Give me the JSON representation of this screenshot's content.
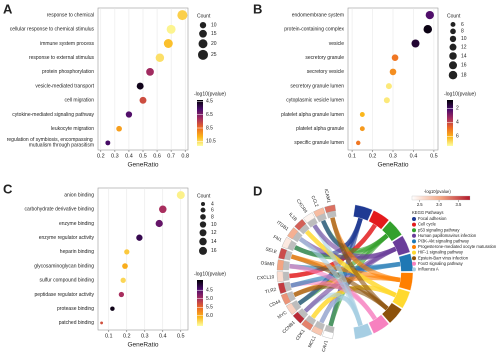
{
  "chart_data": [
    {
      "type": "dot",
      "panel": "A",
      "x_label": "GeneRatio",
      "categories": [
        "response to chemical",
        "cellular response to chemical stimulus",
        "immune system process",
        "response to external stimulus",
        "protein phosphorylation",
        "vesicle-mediated transport",
        "cell migration",
        "cytokine-mediated signaling pathway",
        "leukocyte migration",
        "regulation of symbiosis, encompassing mutualism through parasitism"
      ],
      "x": [
        0.78,
        0.7,
        0.68,
        0.62,
        0.55,
        0.48,
        0.5,
        0.4,
        0.33,
        0.25
      ],
      "count": [
        25,
        20,
        20,
        18,
        15,
        12,
        12,
        10,
        8,
        6
      ],
      "neglog10p": [
        10.3,
        11.0,
        10.0,
        10.6,
        7.0,
        4.6,
        7.8,
        5.8,
        9.4,
        5.6
      ],
      "xlim": [
        0.18,
        0.82
      ],
      "xticks": [
        0.2,
        0.3,
        0.4,
        0.5,
        0.6,
        0.7,
        0.8
      ],
      "grid": true,
      "size_legend_title": "Count",
      "size_legend": [
        10,
        15,
        20,
        25
      ],
      "color_legend_title": "-log10(pvalue)",
      "clim": [
        4.3,
        11.2
      ],
      "cticks": [
        4.5,
        6.5,
        8.5,
        10.5
      ],
      "colormap": [
        "#000004",
        "#4a0c6b",
        "#a52c60",
        "#ed6925",
        "#fbb61a",
        "#fcffa4"
      ]
    },
    {
      "type": "dot",
      "panel": "B",
      "x_label": "GeneRatio",
      "categories": [
        "endomembrane system",
        "protein-containing complex",
        "vesicle",
        "secretory granule",
        "secretory vesicle",
        "secretory granule lumen",
        "cytoplasmic vesicle lumen",
        "platelet alpha granule lumen",
        "platelet alpha granule",
        "specific granule lumen"
      ],
      "x": [
        0.48,
        0.47,
        0.41,
        0.31,
        0.3,
        0.28,
        0.27,
        0.15,
        0.15,
        0.13
      ],
      "count": [
        17,
        18,
        16,
        11,
        11,
        9,
        9,
        6,
        6,
        5
      ],
      "neglog10p": [
        2.2,
        1.0,
        1.4,
        5.0,
        5.4,
        7.0,
        7.0,
        6.1,
        5.6,
        5.0
      ],
      "xlim": [
        0.08,
        0.52
      ],
      "xticks": [
        0.1,
        0.2,
        0.3,
        0.4,
        0.5
      ],
      "grid": true,
      "size_legend_title": "Count",
      "size_legend": [
        6,
        8,
        10,
        12,
        14,
        16,
        18
      ],
      "color_legend_title": "-log10(pvalue)",
      "clim": [
        0.8,
        7.4
      ],
      "cticks": [
        2,
        4,
        6
      ],
      "colormap": [
        "#000004",
        "#4a0c6b",
        "#a52c60",
        "#ed6925",
        "#fbb61a",
        "#fcffa4"
      ]
    },
    {
      "type": "dot",
      "panel": "C",
      "x_label": "GeneRatio",
      "categories": [
        "anion binding",
        "carbohydrate derivative binding",
        "enzyme binding",
        "enzyme regulator activity",
        "heparin binding",
        "glycosaminoglycan binding",
        "sulfur compound binding",
        "peptidase regulator activity",
        "protease binding",
        "patched binding"
      ],
      "x": [
        0.5,
        0.4,
        0.38,
        0.27,
        0.2,
        0.19,
        0.18,
        0.17,
        0.12,
        0.06
      ],
      "count": [
        16,
        14,
        13,
        10,
        7,
        8,
        7,
        7,
        5,
        2
      ],
      "neglog10p": [
        6.5,
        5.0,
        4.6,
        4.3,
        6.2,
        6.0,
        6.3,
        5.0,
        4.0,
        5.3
      ],
      "xlim": [
        0.04,
        0.54
      ],
      "xticks": [
        0.1,
        0.2,
        0.3,
        0.4,
        0.5
      ],
      "grid": true,
      "size_legend_title": "Count",
      "size_legend": [
        4,
        6,
        8,
        10,
        12,
        14,
        16
      ],
      "color_legend_title": "-log10(pvalue)",
      "clim": [
        3.9,
        6.6
      ],
      "cticks": [
        4.5,
        {
          "value": 5,
          "label": "5.0"
        },
        5.5,
        {
          "value": 6,
          "label": "6.0"
        }
      ],
      "colormap": [
        "#000004",
        "#4a0c6b",
        "#a52c60",
        "#ed6925",
        "#fbb61a",
        "#fcffa4"
      ]
    },
    {
      "type": "chord",
      "panel": "D",
      "genes": [
        "CAV1",
        "MCL1",
        "CDK1",
        "CCNB1",
        "MYC",
        "CD44",
        "TLR2",
        "CXCL10",
        "OSMR",
        "SELE",
        "FN1",
        "ITGB1",
        "IL1B",
        "CXCR4",
        "CCL2",
        "ICAM1"
      ],
      "color_legend_title": "-log10(pvalue)",
      "clim": [
        2.3,
        3.8
      ],
      "cticks": [
        2.5,
        {
          "value": 3,
          "label": "3.0"
        },
        3.5
      ],
      "colormap": [
        "#ffffff",
        "#f4a582",
        "#b2182b"
      ],
      "pathway_legend_title": "KEGG Pathways",
      "series": [
        {
          "name": "Focal adhesion",
          "color": "#1f3a93"
        },
        {
          "name": "Cell cycle",
          "color": "#e31a1c"
        },
        {
          "name": "p53 signaling pathway",
          "color": "#33a02c"
        },
        {
          "name": "Human papillomavirus infection",
          "color": "#6a3d9a"
        },
        {
          "name": "PI3K-Akt signaling pathway",
          "color": "#1f78b4"
        },
        {
          "name": "Progesterone-mediated oocyte maturation",
          "color": "#ff7f00"
        },
        {
          "name": "HIF-1 signaling pathway",
          "color": "#ffd92f"
        },
        {
          "name": "Epstein-Barr virus infection",
          "color": "#8c510a"
        },
        {
          "name": "FoxO signaling pathway",
          "color": "#f781bf"
        },
        {
          "name": "Influenza A",
          "color": "#a6cee3"
        }
      ]
    }
  ]
}
